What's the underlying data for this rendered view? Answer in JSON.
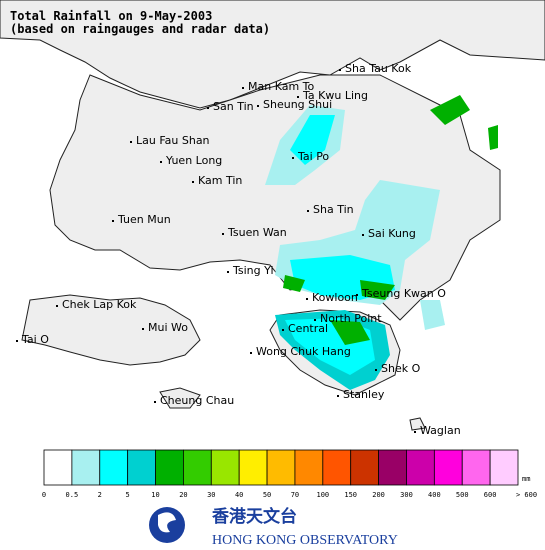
{
  "header": {
    "title": "Total Rainfall on 9-May-2003",
    "subtitle": "(based on raingauges and radar data)"
  },
  "places": [
    "Sha Tau Kok",
    "Man Kam To",
    "Ta Kwu Ling",
    "San Tin",
    "Sheung Shui",
    "Lau Fau Shan",
    "Yuen Long",
    "Tai Po",
    "Kam Tin",
    "Sha Tin",
    "Tuen Mun",
    "Tsuen Wan",
    "Sai Kung",
    "Tsing Yi",
    "Chek Lap Kok",
    "Kowloon",
    "Tseung Kwan O",
    "North Point",
    "Mui Wo",
    "Central",
    "Tai O",
    "Wong Chuk Hang",
    "Shek O",
    "Stanley",
    "Cheung Chau",
    "Waglan"
  ],
  "legend": {
    "unit": "mm",
    "colors": [
      "#ffffff",
      "#a8f0f0",
      "#00ffff",
      "#00d0d0",
      "#00b000",
      "#33cc00",
      "#99e600",
      "#ffee00",
      "#ffbb00",
      "#ff8800",
      "#ff5500",
      "#cc3300",
      "#990066",
      "#cc00aa",
      "#ff00dd",
      "#ff66ee",
      "#ffccff"
    ],
    "ticks": [
      0,
      0.5,
      2,
      5,
      10,
      20,
      30,
      40,
      50,
      70,
      100,
      150,
      200,
      300,
      400,
      500,
      600,
      {
        "value": 600,
        "label": "> 600"
      }
    ]
  },
  "logo": {
    "chinese": "香港天文台",
    "english": "HONG KONG OBSERVATORY"
  }
}
